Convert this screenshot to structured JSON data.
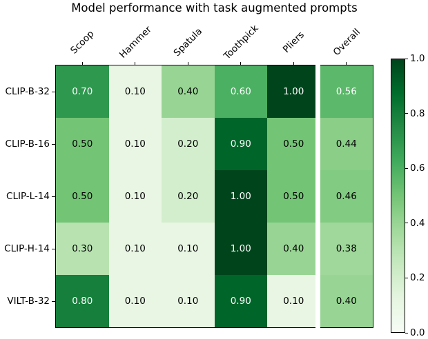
{
  "title": "Model performance with task augmented prompts",
  "chart_data": {
    "type": "heatmap",
    "title": "Model performance with task augmented prompts",
    "columns": [
      "Scoop",
      "Hammer",
      "Spatula",
      "Toothpick",
      "Pliers",
      "Overall"
    ],
    "rows": [
      "CLIP-B-32",
      "CLIP-B-16",
      "CLIP-L-14",
      "CLIP-H-14",
      "VILT-B-32"
    ],
    "values": [
      [
        0.7,
        0.1,
        0.4,
        0.6,
        1.0,
        0.56
      ],
      [
        0.5,
        0.1,
        0.2,
        0.9,
        0.5,
        0.44
      ],
      [
        0.5,
        0.1,
        0.2,
        1.0,
        0.5,
        0.46
      ],
      [
        0.3,
        0.1,
        0.1,
        1.0,
        0.4,
        0.38
      ],
      [
        0.8,
        0.1,
        0.1,
        0.9,
        0.1,
        0.4
      ]
    ],
    "value_decimals": 2,
    "vmin": 0.0,
    "vmax": 1.0,
    "colormap": "Greens",
    "colormap_anchors": [
      "#f7fcf5",
      "#e5f5e0",
      "#c7e9c0",
      "#a1d99b",
      "#74c476",
      "#41ab5d",
      "#238b45",
      "#006d2c",
      "#00441b"
    ],
    "colorbar_tick_labels": [
      "1.0",
      "0.8",
      "0.6",
      "0.4",
      "0.2",
      "0.0"
    ],
    "colorbar_tick_values": [
      1.0,
      0.8,
      0.6,
      0.4,
      0.2,
      0.0
    ],
    "separator_before_column": "Overall",
    "cell_text": {
      "light": "#ffffff",
      "dark": "#000000",
      "light_above": 0.5
    },
    "legend_position": "right-colorbar",
    "grid": false
  }
}
